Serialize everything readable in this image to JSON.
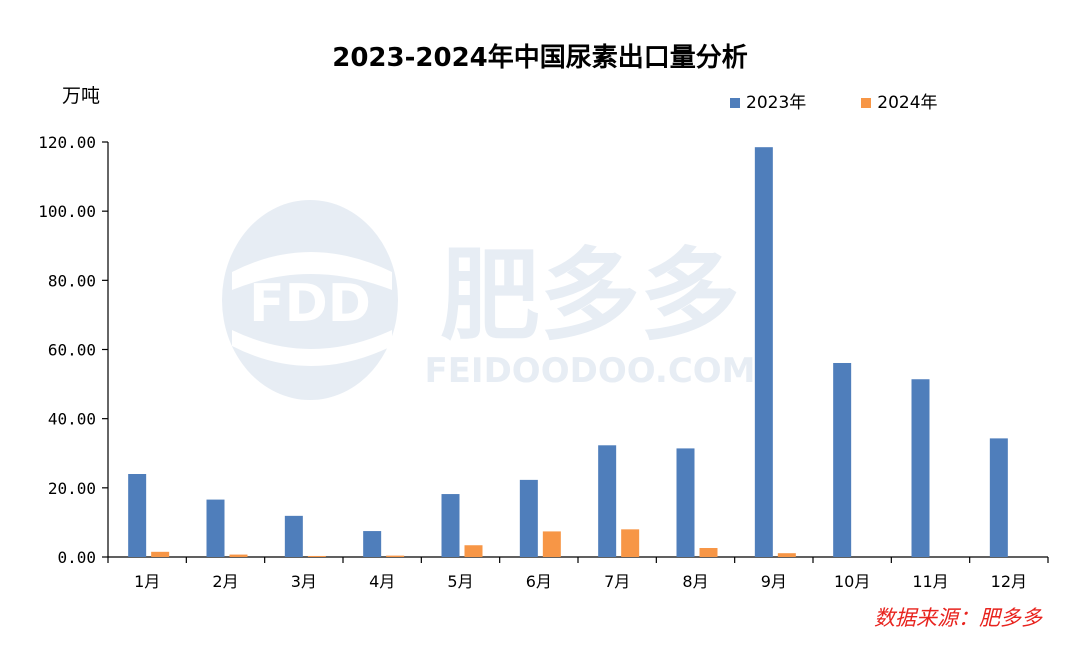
{
  "chart_data": {
    "type": "bar",
    "title": "2023-2024年中国尿素出口量分析",
    "ylabel": "万吨",
    "xlabel": "",
    "ylim": [
      0,
      120
    ],
    "yticks": [
      0,
      20,
      40,
      60,
      80,
      100,
      120
    ],
    "ytick_labels": [
      "0.00",
      "20.00",
      "40.00",
      "60.00",
      "80.00",
      "100.00",
      "120.00"
    ],
    "grid": false,
    "legend_position": "top-right",
    "categories": [
      "1月",
      "2月",
      "3月",
      "4月",
      "5月",
      "6月",
      "7月",
      "8月",
      "9月",
      "10月",
      "11月",
      "12月"
    ],
    "series": [
      {
        "name": "2023年",
        "color": "#4f7ebb",
        "values": [
          24.0,
          16.6,
          11.9,
          7.5,
          18.2,
          22.3,
          32.3,
          31.4,
          118.5,
          56.1,
          51.4,
          34.3
        ]
      },
      {
        "name": "2024年",
        "color": "#f79646",
        "values": [
          1.5,
          0.7,
          0.3,
          0.4,
          3.4,
          7.4,
          8.0,
          2.6,
          1.1,
          null,
          null,
          null
        ]
      }
    ],
    "source": "数据来源：肥多多"
  },
  "watermark": {
    "logo_text": "FDD",
    "brand_text": "肥多多",
    "domain_text": "FEIDOODOO.COM",
    "color": "#aabfd8"
  },
  "colors": {
    "axis": "#000000",
    "source": "#e8231e"
  }
}
